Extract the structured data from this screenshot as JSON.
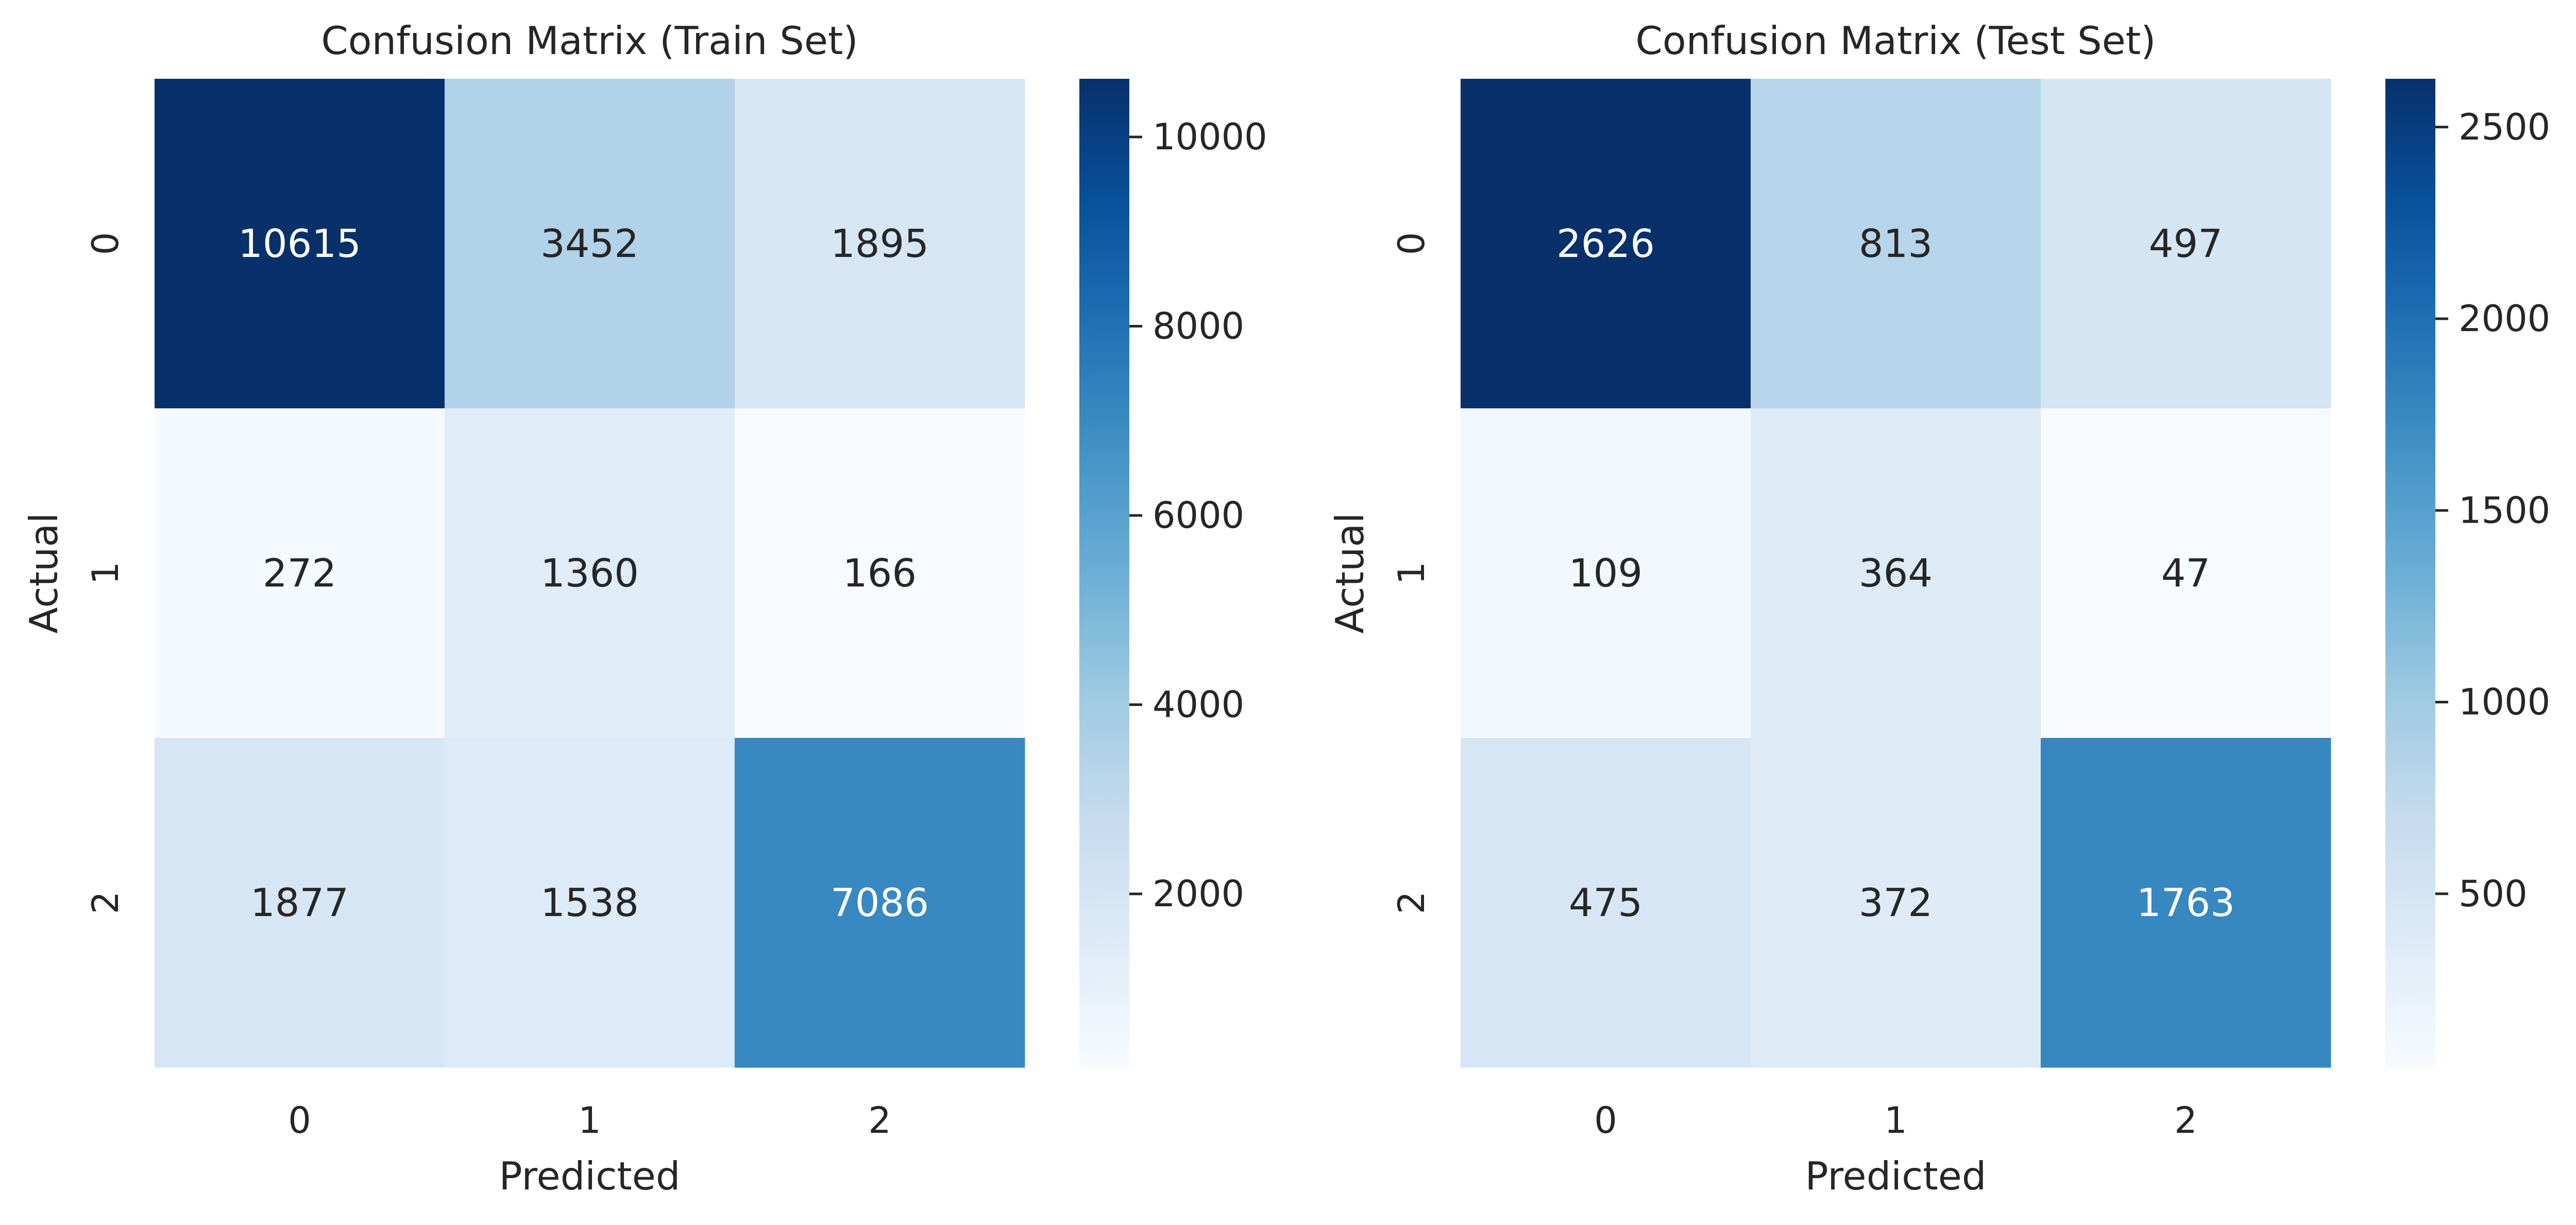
{
  "chart_data": [
    {
      "type": "heatmap",
      "title": "Confusion Matrix (Train Set)",
      "xlabel": "Predicted",
      "ylabel": "Actual",
      "x_categories": [
        "0",
        "1",
        "2"
      ],
      "y_categories": [
        "0",
        "1",
        "2"
      ],
      "values": [
        [
          10615,
          3452,
          1895
        ],
        [
          272,
          1360,
          166
        ],
        [
          1877,
          1538,
          7086
        ]
      ],
      "colorbar": {
        "range": [
          166,
          10615
        ],
        "ticks": [
          2000,
          4000,
          6000,
          8000,
          10000
        ],
        "tick_labels": [
          "2000",
          "4000",
          "6000",
          "8000",
          "10000"
        ]
      },
      "colormap": "Blues"
    },
    {
      "type": "heatmap",
      "title": "Confusion Matrix (Test Set)",
      "xlabel": "Predicted",
      "ylabel": "Actual",
      "x_categories": [
        "0",
        "1",
        "2"
      ],
      "y_categories": [
        "0",
        "1",
        "2"
      ],
      "values": [
        [
          2626,
          813,
          497
        ],
        [
          109,
          364,
          47
        ],
        [
          475,
          372,
          1763
        ]
      ],
      "colorbar": {
        "range": [
          47,
          2626
        ],
        "ticks": [
          500,
          1000,
          1500,
          2000,
          2500
        ],
        "tick_labels": [
          "500",
          "1000",
          "1500",
          "2000",
          "2500"
        ]
      },
      "colormap": "Blues"
    }
  ]
}
